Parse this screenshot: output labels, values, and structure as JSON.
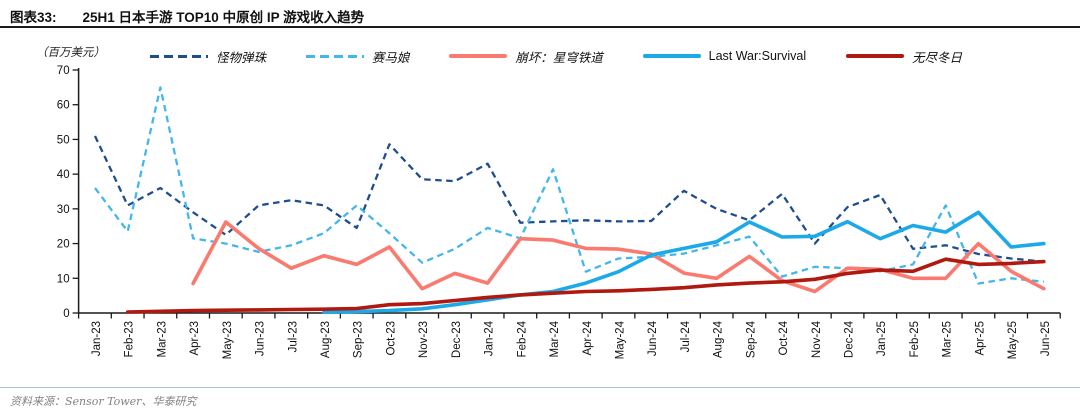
{
  "header": {
    "tag": "图表33:",
    "title": "25H1 日本手游 TOP10 中原创 IP 游戏收入趋势"
  },
  "footer": {
    "source": "资料来源：Sensor Tower、华泰研究"
  },
  "chart_data": {
    "type": "line",
    "title": "25H1 日本手游 TOP10 中原创 IP 游戏收入趋势",
    "unit_label": "（百万美元）",
    "xlabel": "",
    "ylabel": "百万美元",
    "ylim": [
      0,
      70
    ],
    "y_ticks": [
      0,
      10,
      20,
      30,
      40,
      50,
      60,
      70
    ],
    "grid": false,
    "legend_position": "top",
    "categories": [
      "Jan-23",
      "Feb-23",
      "Mar-23",
      "Apr-23",
      "May-23",
      "Jun-23",
      "Jul-23",
      "Aug-23",
      "Sep-23",
      "Oct-23",
      "Nov-23",
      "Dec-23",
      "Jan-24",
      "Feb-24",
      "Mar-24",
      "Apr-24",
      "May-24",
      "Jun-24",
      "Jul-24",
      "Aug-24",
      "Sep-24",
      "Oct-24",
      "Nov-24",
      "Dec-24",
      "Jan-25",
      "Feb-25",
      "Mar-25",
      "Apr-25",
      "May-25",
      "Jun-25"
    ],
    "series": [
      {
        "id": "monster-strike",
        "name": "怪物弹珠",
        "color": "#1F4E8F",
        "style": "dashed",
        "values": [
          51,
          31,
          36,
          29,
          22.5,
          31,
          32.5,
          31,
          24.5,
          48.6,
          38.5,
          38,
          43,
          26,
          26.4,
          26.7,
          26.4,
          26.5,
          35.2,
          30,
          26.7,
          34.3,
          20,
          30.5,
          34,
          18.5,
          19.5,
          17,
          15.7,
          14.8
        ]
      },
      {
        "id": "uma-musume",
        "name": "赛马娘",
        "color": "#43B7EB",
        "style": "dashed",
        "values": [
          36,
          23.5,
          65,
          21.5,
          20,
          17.6,
          19.5,
          23,
          31,
          23,
          14.5,
          18.5,
          24.5,
          21.5,
          41.4,
          11.9,
          15.7,
          16.2,
          17.1,
          19.5,
          22,
          10.5,
          13.3,
          12.9,
          12,
          14,
          31,
          8.5,
          10,
          9
        ]
      },
      {
        "id": "honkai-star-rail",
        "name": "崩坏：星穹铁道",
        "color": "#FA7A70",
        "style": "solid",
        "values": [
          null,
          null,
          null,
          8.5,
          26.2,
          18.6,
          12.9,
          16.5,
          14,
          19,
          7,
          11.4,
          8.6,
          21.4,
          21,
          18.6,
          18.4,
          17,
          11.5,
          10,
          16.3,
          9.3,
          6.2,
          12.9,
          12.6,
          10,
          10,
          20,
          12,
          7
        ]
      },
      {
        "id": "last-war-survival",
        "name": "Last War:Survival",
        "color": "#1CA9E8",
        "style": "solid",
        "values": [
          null,
          null,
          null,
          null,
          null,
          null,
          null,
          0.2,
          0.4,
          0.7,
          1.2,
          2.4,
          3.8,
          5.2,
          6.2,
          8.6,
          11.9,
          16.7,
          18.6,
          20.5,
          26.2,
          21.9,
          22.1,
          26.3,
          21.4,
          25.2,
          23.3,
          29,
          19,
          20
        ]
      },
      {
        "id": "whiteout-survival",
        "name": "无尽冬日",
        "color": "#B0190F",
        "style": "solid",
        "values": [
          null,
          0.3,
          0.5,
          0.7,
          0.8,
          0.9,
          1.0,
          1.1,
          1.3,
          2.4,
          2.7,
          3.6,
          4.5,
          5.2,
          5.7,
          6.2,
          6.4,
          6.8,
          7.3,
          8.1,
          8.6,
          9.0,
          9.7,
          11.4,
          12.4,
          12,
          15.5,
          14,
          14.3,
          14.8
        ]
      }
    ]
  }
}
